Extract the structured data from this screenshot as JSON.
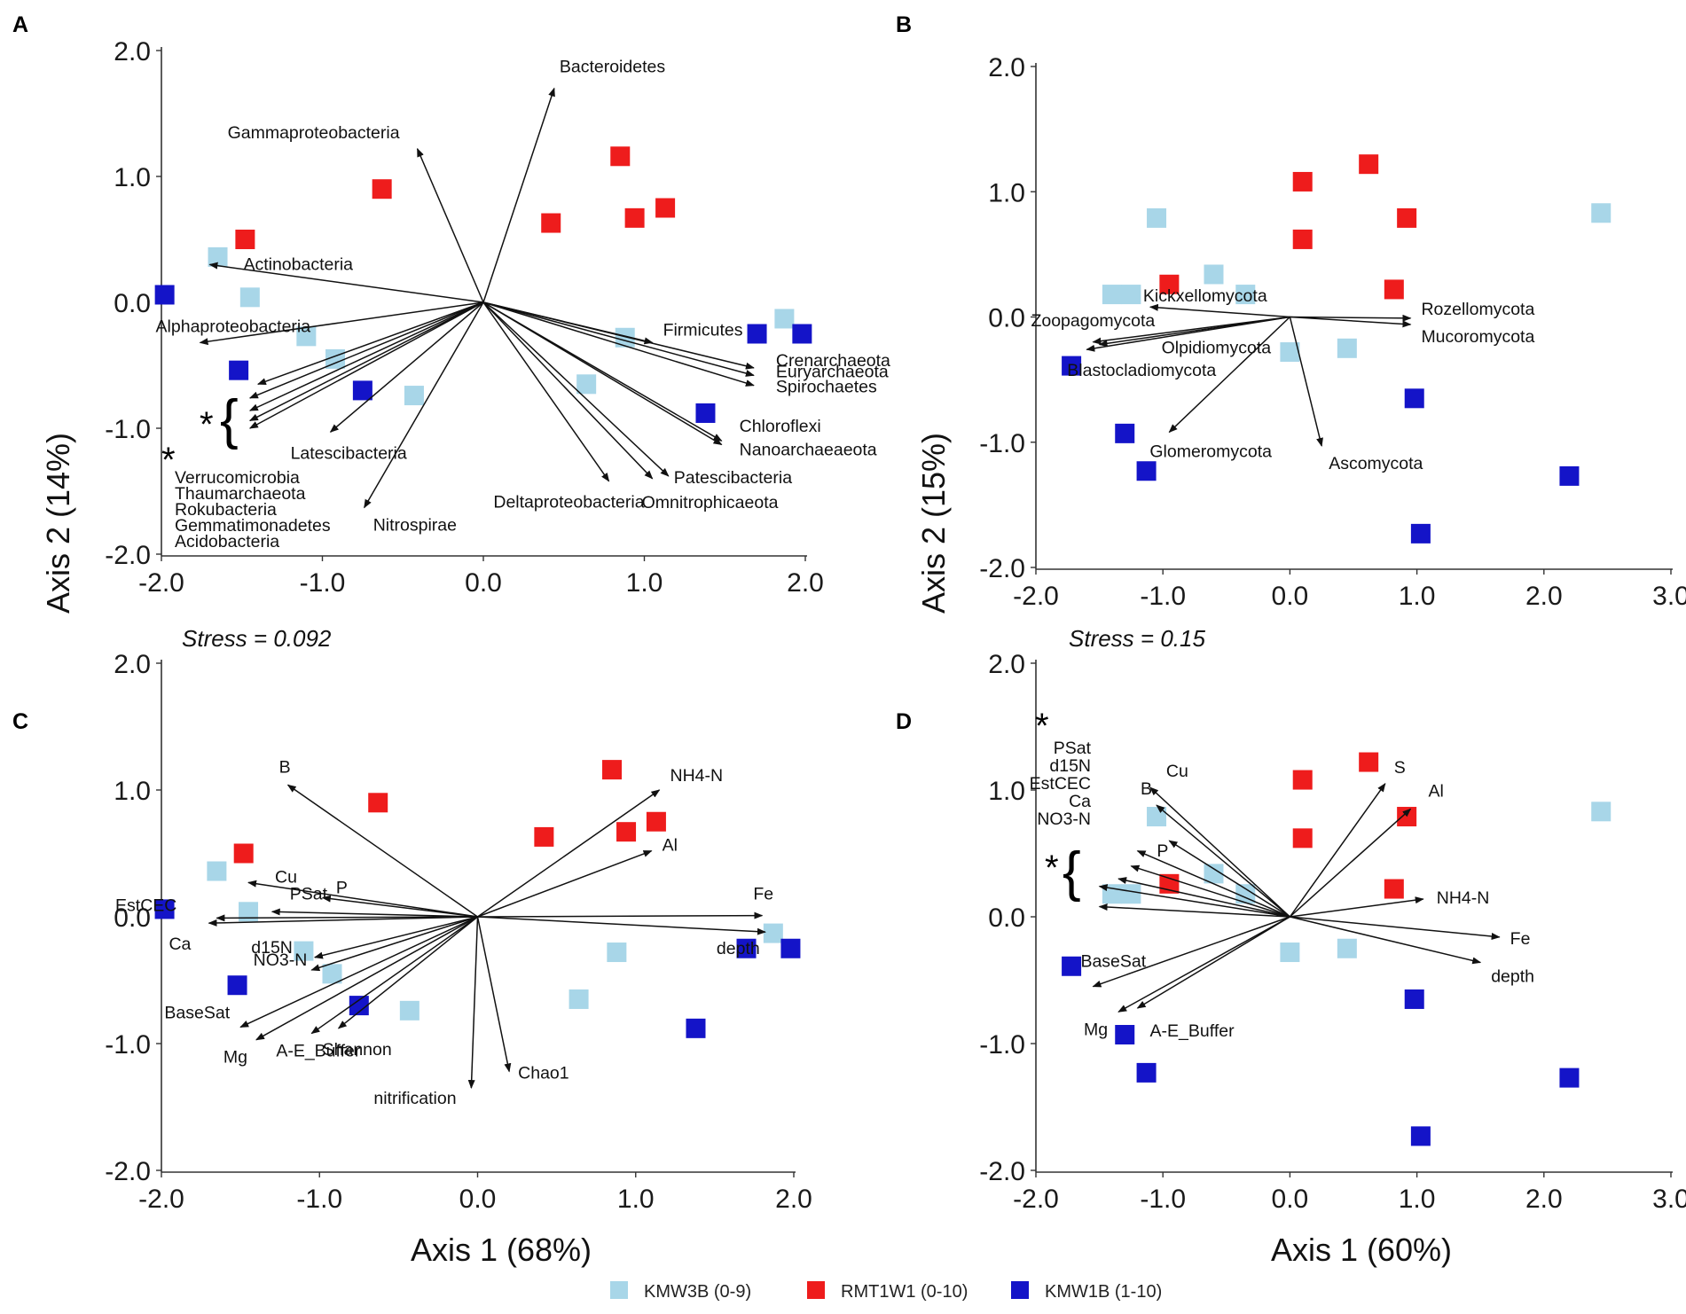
{
  "colors": {
    "KMW3B": "#a8d6e8",
    "RMT1W1": "#ee1c1c",
    "KMW1B": "#1414c8",
    "arrow": "#111111"
  },
  "legend": [
    {
      "key": "KMW3B",
      "label": "KMW3B (0-9)"
    },
    {
      "key": "RMT1W1",
      "label": "RMT1W1 (0-10)"
    },
    {
      "key": "KMW1B",
      "label": "KMW1B (1-10)"
    }
  ],
  "axis_titles": {
    "y_top": "Axis 2 (14%)",
    "y_top_right": "Axis 2 (15%)",
    "x_left": "Axis 1 (68%)",
    "x_right": "Axis 1 (60%)"
  },
  "chart_data": [
    {
      "panel": "A",
      "type": "scatter",
      "subtype": "NMDS biplot",
      "xlim": [
        -2.0,
        2.0
      ],
      "ylim": [
        -2.0,
        2.0
      ],
      "xticks": [
        "-2.0",
        "-1.0",
        "0.0",
        "1.0",
        "2.0"
      ],
      "yticks": [
        "2.0",
        "1.0",
        "0.0",
        "-1.0",
        "-2.0"
      ],
      "stress": "Stress = 0.092",
      "points": {
        "KMW3B": [
          [
            -1.65,
            0.36
          ],
          [
            -1.45,
            0.04
          ],
          [
            -1.1,
            -0.27
          ],
          [
            -0.92,
            -0.45
          ],
          [
            -0.43,
            -0.74
          ],
          [
            0.88,
            -0.28
          ],
          [
            0.64,
            -0.65
          ],
          [
            1.87,
            -0.13
          ]
        ],
        "RMT1W1": [
          [
            -1.48,
            0.5
          ],
          [
            -0.63,
            0.9
          ],
          [
            0.42,
            0.63
          ],
          [
            0.85,
            1.16
          ],
          [
            0.94,
            0.67
          ],
          [
            1.13,
            0.75
          ]
        ],
        "KMW1B": [
          [
            -1.98,
            0.06
          ],
          [
            -1.52,
            -0.54
          ],
          [
            -0.75,
            -0.7
          ],
          [
            1.38,
            -0.88
          ],
          [
            1.7,
            -0.25
          ],
          [
            1.98,
            -0.25
          ]
        ]
      },
      "vectors": [
        {
          "label": "Bacteroidetes",
          "end": [
            0.44,
            1.7
          ]
        },
        {
          "label": "Gammaproteobacteria",
          "end": [
            -0.41,
            1.22
          ]
        },
        {
          "label": "Actinobacteria",
          "end": [
            -1.7,
            0.3
          ]
        },
        {
          "label": "Alphaproteobacteria",
          "end": [
            -1.76,
            -0.32
          ]
        },
        {
          "label": "Latescibacteria",
          "end": [
            -0.95,
            -1.03
          ]
        },
        {
          "label": "Nitrospirae",
          "end": [
            -0.74,
            -1.63
          ]
        },
        {
          "label": "Firmicutes",
          "end": [
            1.05,
            -0.32
          ]
        },
        {
          "label": "Crenarchaeota",
          "end": [
            1.68,
            -0.52
          ]
        },
        {
          "label": "Euryarchaeota",
          "end": [
            1.68,
            -0.58
          ]
        },
        {
          "label": "Spirochaetes",
          "end": [
            1.68,
            -0.66
          ]
        },
        {
          "label": "Chloroflexi",
          "end": [
            1.48,
            -1.1
          ]
        },
        {
          "label": "Nanoarchaeaeota",
          "end": [
            1.48,
            -1.13
          ]
        },
        {
          "label": "Deltaproteobacteria",
          "end": [
            0.78,
            -1.42
          ]
        },
        {
          "label": "Patescibacteria",
          "end": [
            1.15,
            -1.38
          ]
        },
        {
          "label": "Omnitrophicaeota",
          "end": [
            1.05,
            -1.4
          ]
        },
        {
          "label": "",
          "end": [
            -1.4,
            -0.65
          ]
        },
        {
          "label": "",
          "end": [
            -1.45,
            -0.76
          ]
        },
        {
          "label": "",
          "end": [
            -1.45,
            -0.86
          ]
        },
        {
          "label": "",
          "end": [
            -1.45,
            -0.94
          ]
        },
        {
          "label": "",
          "end": [
            -1.45,
            -1.0
          ]
        }
      ],
      "group_label": "*",
      "starred_taxa": [
        "Verrucomicrobia",
        "Thaumarchaeota",
        "Rokubacteria",
        "Gemmatimonadetes",
        "Acidobacteria"
      ]
    },
    {
      "panel": "B",
      "type": "scatter",
      "subtype": "NMDS biplot",
      "xlim": [
        -2.0,
        3.0
      ],
      "ylim": [
        -2.0,
        2.0
      ],
      "xticks": [
        "-2.0",
        "-1.0",
        "0.0",
        "1.0",
        "2.0",
        "3.0"
      ],
      "yticks": [
        "2.0",
        "1.0",
        "0.0",
        "-1.0",
        "-2.0"
      ],
      "stress": "Stress = 0.15",
      "points": {
        "KMW3B": [
          [
            -1.05,
            0.79
          ],
          [
            -1.4,
            0.18
          ],
          [
            -1.25,
            0.18
          ],
          [
            -0.6,
            0.34
          ],
          [
            -0.35,
            0.18
          ],
          [
            0.0,
            -0.28
          ],
          [
            0.45,
            -0.25
          ],
          [
            2.45,
            0.83
          ]
        ],
        "RMT1W1": [
          [
            -0.95,
            0.26
          ],
          [
            0.1,
            1.08
          ],
          [
            0.1,
            0.62
          ],
          [
            0.62,
            1.22
          ],
          [
            0.82,
            0.22
          ],
          [
            0.92,
            0.79
          ]
        ],
        "KMW1B": [
          [
            -1.72,
            -0.39
          ],
          [
            -1.3,
            -0.93
          ],
          [
            -1.13,
            -1.23
          ],
          [
            0.98,
            -0.65
          ],
          [
            1.03,
            -1.73
          ],
          [
            2.2,
            -1.27
          ]
        ]
      },
      "vectors": [
        {
          "label": "Kickxellomycota",
          "end": [
            -1.1,
            0.08
          ]
        },
        {
          "label": "Rozellomycota",
          "end": [
            0.95,
            -0.01
          ]
        },
        {
          "label": "Mucoromycota",
          "end": [
            0.95,
            -0.06
          ]
        },
        {
          "label": "Zoopagomycota",
          "end": [
            -1.55,
            -0.2
          ]
        },
        {
          "label": "Olpidiomycota",
          "end": [
            -1.5,
            -0.22
          ]
        },
        {
          "label": "Blastocladiomycota",
          "end": [
            -1.6,
            -0.26
          ]
        },
        {
          "label": "Glomeromycota",
          "end": [
            -0.95,
            -0.92
          ]
        },
        {
          "label": "Ascomycota",
          "end": [
            0.25,
            -1.03
          ]
        }
      ]
    },
    {
      "panel": "C",
      "type": "scatter",
      "subtype": "NMDS biplot",
      "xlim": [
        -2.0,
        2.0
      ],
      "ylim": [
        -2.0,
        2.0
      ],
      "xticks": [
        "-2.0",
        "-1.0",
        "0.0",
        "1.0",
        "2.0"
      ],
      "yticks": [
        "2.0",
        "1.0",
        "0.0",
        "-1.0",
        "-2.0"
      ],
      "points": {
        "KMW3B": [
          [
            -1.65,
            0.36
          ],
          [
            -1.45,
            0.04
          ],
          [
            -1.1,
            -0.27
          ],
          [
            -0.92,
            -0.45
          ],
          [
            -0.43,
            -0.74
          ],
          [
            0.88,
            -0.28
          ],
          [
            0.64,
            -0.65
          ],
          [
            1.87,
            -0.13
          ]
        ],
        "RMT1W1": [
          [
            -1.48,
            0.5
          ],
          [
            -0.63,
            0.9
          ],
          [
            0.42,
            0.63
          ],
          [
            0.85,
            1.16
          ],
          [
            0.94,
            0.67
          ],
          [
            1.13,
            0.75
          ]
        ],
        "KMW1B": [
          [
            -1.98,
            0.06
          ],
          [
            -1.52,
            -0.54
          ],
          [
            -0.75,
            -0.7
          ],
          [
            1.38,
            -0.88
          ],
          [
            1.7,
            -0.25
          ],
          [
            1.98,
            -0.25
          ]
        ]
      },
      "vectors": [
        {
          "label": "B",
          "end": [
            -1.2,
            1.04
          ]
        },
        {
          "label": "NH4-N",
          "end": [
            1.15,
            1.0
          ]
        },
        {
          "label": "Al",
          "end": [
            1.1,
            0.52
          ]
        },
        {
          "label": "Cu",
          "end": [
            -1.45,
            0.27
          ]
        },
        {
          "label": "P",
          "end": [
            -0.98,
            0.15
          ]
        },
        {
          "label": "PSat",
          "end": [
            -1.3,
            0.04
          ]
        },
        {
          "label": "EstCEC",
          "end": [
            -1.65,
            -0.01
          ]
        },
        {
          "label": "Ca",
          "end": [
            -1.7,
            -0.05
          ]
        },
        {
          "label": "Fe",
          "end": [
            1.8,
            0.01
          ]
        },
        {
          "label": "depth",
          "end": [
            1.82,
            -0.12
          ]
        },
        {
          "label": "d15N",
          "end": [
            -1.03,
            -0.32
          ]
        },
        {
          "label": "NO3-N",
          "end": [
            -1.05,
            -0.42
          ]
        },
        {
          "label": "BaseSat",
          "end": [
            -1.5,
            -0.87
          ]
        },
        {
          "label": "Mg",
          "end": [
            -1.4,
            -0.97
          ]
        },
        {
          "label": "A-E_Buffer",
          "end": [
            -1.05,
            -0.92
          ]
        },
        {
          "label": "Shannon",
          "end": [
            -0.88,
            -0.88
          ]
        },
        {
          "label": "nitrification",
          "end": [
            -0.04,
            -1.35
          ]
        },
        {
          "label": "Chao1",
          "end": [
            0.2,
            -1.22
          ]
        }
      ]
    },
    {
      "panel": "D",
      "type": "scatter",
      "subtype": "NMDS biplot",
      "xlim": [
        -2.0,
        3.0
      ],
      "ylim": [
        -2.0,
        2.0
      ],
      "xticks": [
        "-2.0",
        "-1.0",
        "0.0",
        "1.0",
        "2.0",
        "3.0"
      ],
      "yticks": [
        "2.0",
        "1.0",
        "0.0",
        "-1.0",
        "-2.0"
      ],
      "points": {
        "KMW3B": [
          [
            -1.05,
            0.79
          ],
          [
            -1.4,
            0.18
          ],
          [
            -1.25,
            0.18
          ],
          [
            -0.6,
            0.34
          ],
          [
            -0.35,
            0.18
          ],
          [
            0.0,
            -0.28
          ],
          [
            0.45,
            -0.25
          ],
          [
            2.45,
            0.83
          ]
        ],
        "RMT1W1": [
          [
            -0.95,
            0.26
          ],
          [
            0.1,
            1.08
          ],
          [
            0.1,
            0.62
          ],
          [
            0.62,
            1.22
          ],
          [
            0.82,
            0.22
          ],
          [
            0.92,
            0.79
          ]
        ],
        "KMW1B": [
          [
            -1.72,
            -0.39
          ],
          [
            -1.3,
            -0.93
          ],
          [
            -1.13,
            -1.23
          ],
          [
            0.98,
            -0.65
          ],
          [
            1.03,
            -1.73
          ],
          [
            2.2,
            -1.27
          ]
        ]
      },
      "vectors": [
        {
          "label": "Cu",
          "end": [
            -1.1,
            1.02
          ]
        },
        {
          "label": "B",
          "end": [
            -1.05,
            0.88
          ]
        },
        {
          "label": "P",
          "end": [
            -0.95,
            0.6
          ]
        },
        {
          "label": "S",
          "end": [
            0.75,
            1.05
          ]
        },
        {
          "label": "Al",
          "end": [
            0.95,
            0.85
          ]
        },
        {
          "label": "NH4-N",
          "end": [
            1.05,
            0.14
          ]
        },
        {
          "label": "Fe",
          "end": [
            1.65,
            -0.16
          ]
        },
        {
          "label": "depth",
          "end": [
            1.5,
            -0.36
          ]
        },
        {
          "label": "BaseSat",
          "end": [
            -1.55,
            -0.55
          ]
        },
        {
          "label": "Mg",
          "end": [
            -1.35,
            -0.75
          ]
        },
        {
          "label": "A-E_Buffer",
          "end": [
            -1.2,
            -0.72
          ]
        },
        {
          "label": "",
          "end": [
            -1.2,
            0.52
          ]
        },
        {
          "label": "",
          "end": [
            -1.25,
            0.4
          ]
        },
        {
          "label": "",
          "end": [
            -1.35,
            0.3
          ]
        },
        {
          "label": "",
          "end": [
            -1.5,
            0.24
          ]
        },
        {
          "label": "",
          "end": [
            -1.5,
            0.08
          ]
        }
      ],
      "group_label": "*",
      "starred_vars": [
        "PSat",
        "d15N",
        "EstCEC",
        "Ca",
        "NO3-N"
      ]
    }
  ]
}
